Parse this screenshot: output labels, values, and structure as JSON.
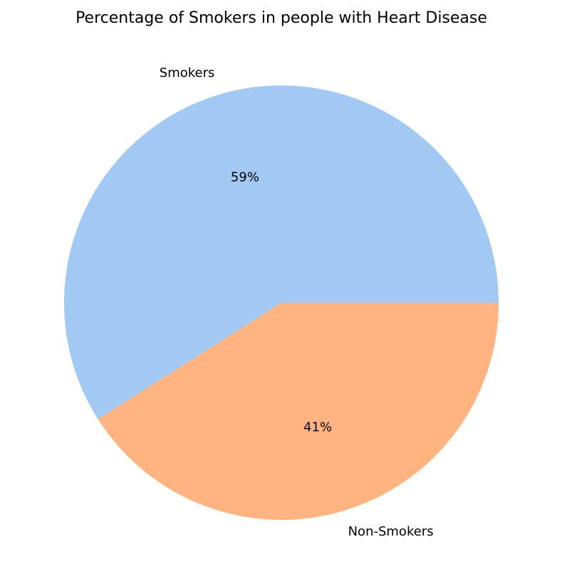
{
  "chart_data": {
    "type": "pie",
    "title": "Percentage of Smokers in people with Heart Disease",
    "labels": [
      "Smokers",
      "Non-Smokers"
    ],
    "values": [
      59,
      41
    ],
    "value_labels": [
      "59%",
      "41%"
    ],
    "colors": [
      "#a1c9f4",
      "#ffb482"
    ],
    "start_angle_deg": 0,
    "direction": "counterclockwise",
    "legend": false
  }
}
